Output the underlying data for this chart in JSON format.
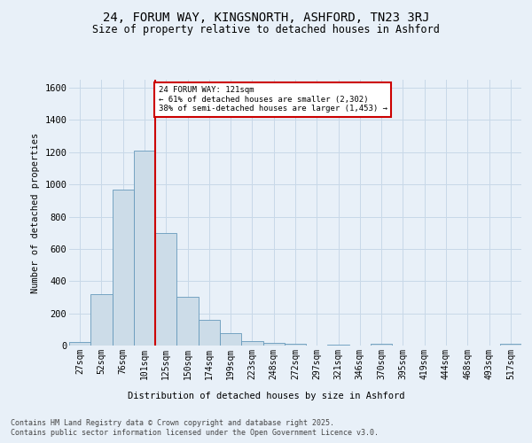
{
  "title": "24, FORUM WAY, KINGSNORTH, ASHFORD, TN23 3RJ",
  "subtitle": "Size of property relative to detached houses in Ashford",
  "xlabel": "Distribution of detached houses by size in Ashford",
  "ylabel": "Number of detached properties",
  "bins": [
    "27sqm",
    "52sqm",
    "76sqm",
    "101sqm",
    "125sqm",
    "150sqm",
    "174sqm",
    "199sqm",
    "223sqm",
    "248sqm",
    "272sqm",
    "297sqm",
    "321sqm",
    "346sqm",
    "370sqm",
    "395sqm",
    "419sqm",
    "444sqm",
    "468sqm",
    "493sqm",
    "517sqm"
  ],
  "values": [
    20,
    320,
    970,
    1210,
    700,
    305,
    158,
    75,
    25,
    15,
    10,
    0,
    5,
    0,
    10,
    0,
    0,
    0,
    0,
    0,
    12
  ],
  "bar_color": "#ccdce8",
  "bar_edge_color": "#6699bb",
  "annotation_line1": "24 FORUM WAY: 121sqm",
  "annotation_line2": "← 61% of detached houses are smaller (2,302)",
  "annotation_line3": "38% of semi-detached houses are larger (1,453) →",
  "annotation_box_color": "#ffffff",
  "annotation_box_edge": "#cc0000",
  "red_line_color": "#cc0000",
  "ylim": [
    0,
    1650
  ],
  "yticks": [
    0,
    200,
    400,
    600,
    800,
    1000,
    1200,
    1400,
    1600
  ],
  "grid_color": "#c8d8e8",
  "background_color": "#e8f0f8",
  "footer1": "Contains HM Land Registry data © Crown copyright and database right 2025.",
  "footer2": "Contains public sector information licensed under the Open Government Licence v3.0."
}
